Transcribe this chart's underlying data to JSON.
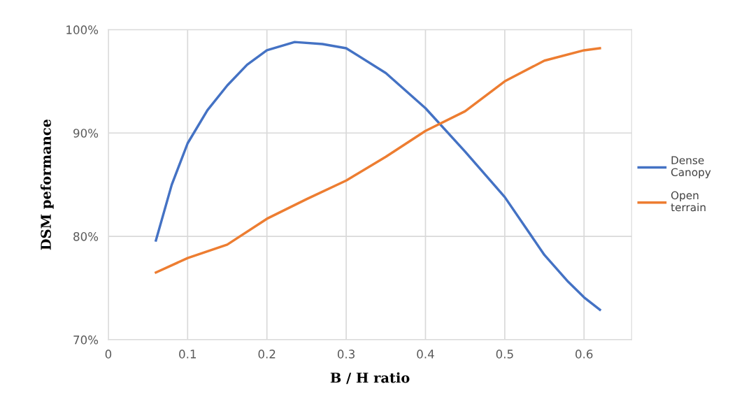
{
  "chart_data": {
    "type": "line",
    "xlabel": "B / H ratio",
    "ylabel": "DSM peformance",
    "xlim": [
      0,
      0.66
    ],
    "xticks": [
      0,
      0.1,
      0.2,
      0.3,
      0.4,
      0.5,
      0.6
    ],
    "ylim": [
      70,
      100
    ],
    "yticks": [
      {
        "value": 70,
        "label": "70%"
      },
      {
        "value": 80,
        "label": "80%"
      },
      {
        "value": 90,
        "label": "90%"
      },
      {
        "value": 100,
        "label": "100%"
      }
    ],
    "grid": true,
    "legend": "right",
    "marker": "none",
    "line_style": "solid",
    "series": [
      {
        "name": "Dense Canopy",
        "color": "#4472c4",
        "x": [
          0.06,
          0.08,
          0.1,
          0.125,
          0.15,
          0.175,
          0.2,
          0.235,
          0.27,
          0.3,
          0.35,
          0.4,
          0.45,
          0.5,
          0.55,
          0.58,
          0.6,
          0.62
        ],
        "values": [
          79.6,
          85.0,
          89.0,
          92.2,
          94.6,
          96.6,
          98.0,
          98.8,
          98.6,
          98.2,
          95.8,
          92.4,
          88.2,
          83.8,
          78.2,
          75.6,
          74.1,
          72.9
        ]
      },
      {
        "name": "Open terrain",
        "color": "#ed7d31",
        "x": [
          0.06,
          0.1,
          0.15,
          0.2,
          0.25,
          0.3,
          0.35,
          0.4,
          0.45,
          0.5,
          0.55,
          0.6,
          0.62
        ],
        "values": [
          76.5,
          77.9,
          79.2,
          81.7,
          83.6,
          85.4,
          87.7,
          90.2,
          92.1,
          95.0,
          97.0,
          98.0,
          98.2
        ]
      }
    ]
  }
}
